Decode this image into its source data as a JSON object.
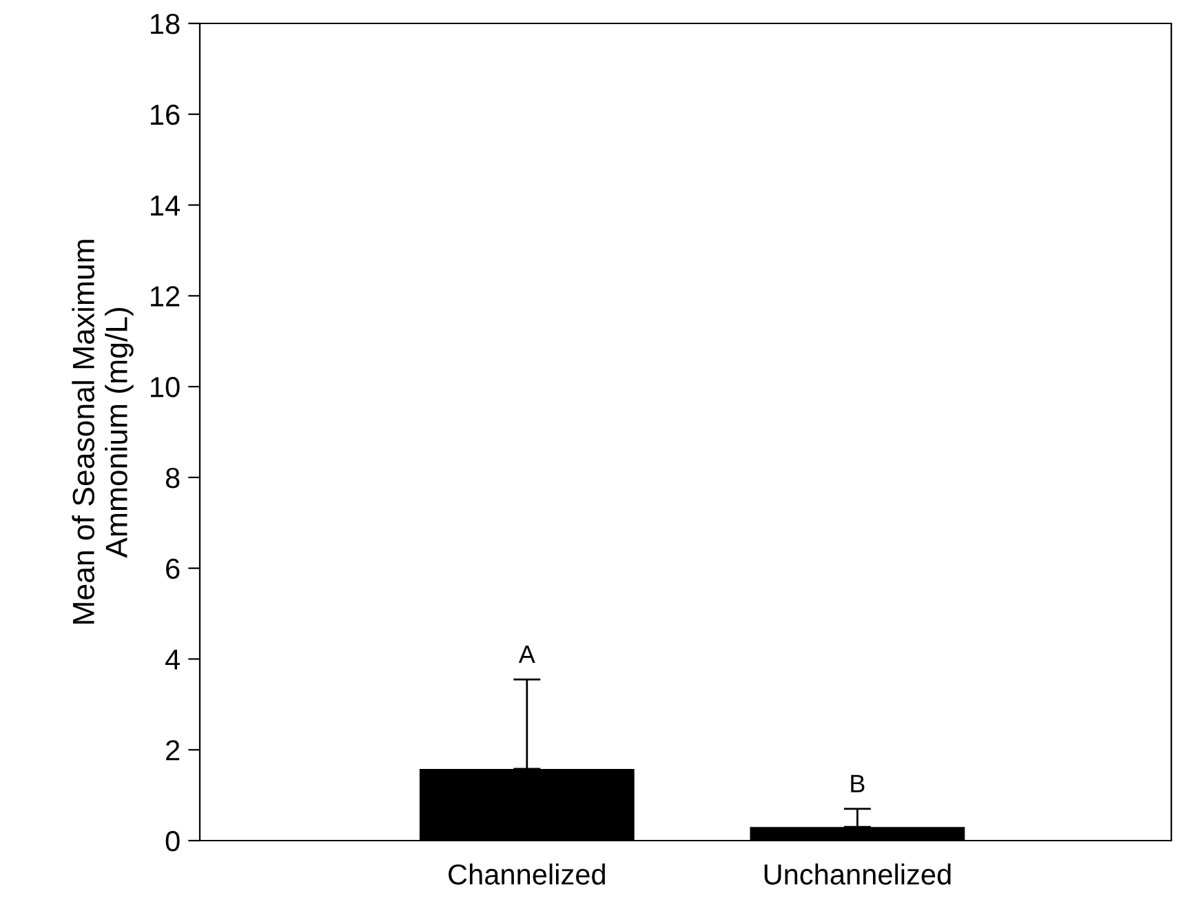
{
  "chart_data": {
    "type": "bar",
    "ylabel": "Mean of Seasonal Maximum\nAmmonium (mg/L)",
    "categories": [
      "Channelized",
      "Unchannelized"
    ],
    "values": [
      1.58,
      0.3
    ],
    "color": "#000000",
    "errors": [
      [
        1.58,
        3.55
      ],
      [
        0.3,
        0.7
      ]
    ],
    "ylim": [
      0,
      18
    ],
    "yticks": [
      0,
      2,
      4,
      6,
      8,
      10,
      12,
      14,
      16,
      18
    ],
    "grid": false,
    "annotations": [
      "A",
      "B"
    ]
  }
}
